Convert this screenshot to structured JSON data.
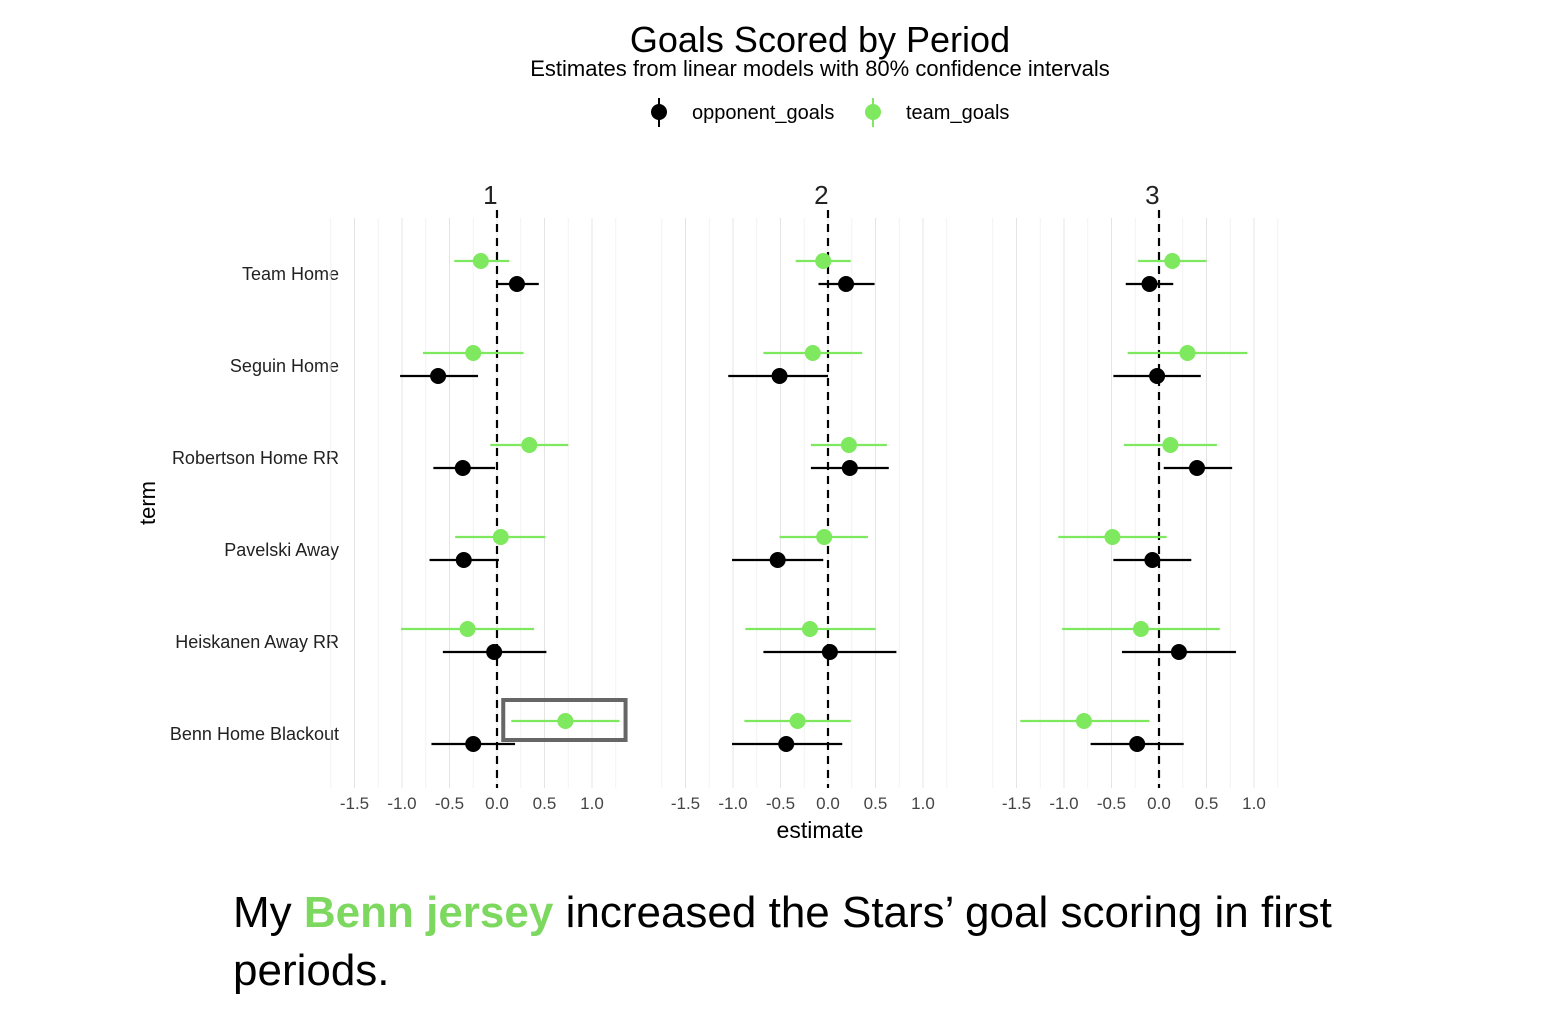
{
  "chart_data": {
    "type": "scatter",
    "subtype": "coefficient dot-and-whisker (faceted)",
    "title": "Goals Scored by Period",
    "subtitle": "Estimates from linear models with 80% confidence intervals",
    "xlabel": "estimate",
    "ylabel": "term",
    "xlim": [
      -1.5,
      1.0
    ],
    "x_ticks": [
      "-1.5",
      "-1.0",
      "-0.5",
      "0.0",
      "0.5",
      "1.0"
    ],
    "reference_line": 0,
    "grid": "vertical",
    "legend": "top-center",
    "terms": [
      "Team Home",
      "Seguin Home",
      "Robertson Home RR",
      "Pavelski Away",
      "Heiskanen Away RR",
      "Benn Home Blackout"
    ],
    "series": [
      {
        "name": "opponent_goals",
        "color": "#000000"
      },
      {
        "name": "team_goals",
        "color": "#7ee85f"
      }
    ],
    "facets": [
      {
        "label": "1",
        "estimates": {
          "opponent_goals": [
            {
              "est": 0.21,
              "low": 0.0,
              "high": 0.44
            },
            {
              "est": -0.62,
              "low": -1.02,
              "high": -0.2
            },
            {
              "est": -0.36,
              "low": -0.67,
              "high": -0.02
            },
            {
              "est": -0.35,
              "low": -0.71,
              "high": 0.02
            },
            {
              "est": -0.03,
              "low": -0.57,
              "high": 0.52
            },
            {
              "est": -0.25,
              "low": -0.69,
              "high": 0.19
            }
          ],
          "team_goals": [
            {
              "est": -0.17,
              "low": -0.45,
              "high": 0.13
            },
            {
              "est": -0.25,
              "low": -0.78,
              "high": 0.28
            },
            {
              "est": 0.34,
              "low": -0.07,
              "high": 0.75
            },
            {
              "est": 0.04,
              "low": -0.44,
              "high": 0.51
            },
            {
              "est": -0.31,
              "low": -1.01,
              "high": 0.39
            },
            {
              "est": 0.72,
              "low": 0.15,
              "high": 1.29
            }
          ]
        }
      },
      {
        "label": "2",
        "estimates": {
          "opponent_goals": [
            {
              "est": 0.19,
              "low": -0.1,
              "high": 0.49
            },
            {
              "est": -0.51,
              "low": -1.05,
              "high": 0.0
            },
            {
              "est": 0.23,
              "low": -0.18,
              "high": 0.64
            },
            {
              "est": -0.53,
              "low": -1.01,
              "high": -0.05
            },
            {
              "est": 0.02,
              "low": -0.68,
              "high": 0.72
            },
            {
              "est": -0.44,
              "low": -1.01,
              "high": 0.15
            }
          ],
          "team_goals": [
            {
              "est": -0.05,
              "low": -0.34,
              "high": 0.24
            },
            {
              "est": -0.16,
              "low": -0.68,
              "high": 0.36
            },
            {
              "est": 0.22,
              "low": -0.18,
              "high": 0.62
            },
            {
              "est": -0.04,
              "low": -0.51,
              "high": 0.42
            },
            {
              "est": -0.19,
              "low": -0.87,
              "high": 0.5
            },
            {
              "est": -0.32,
              "low": -0.88,
              "high": 0.24
            }
          ]
        }
      },
      {
        "label": "3",
        "estimates": {
          "opponent_goals": [
            {
              "est": -0.1,
              "low": -0.35,
              "high": 0.15
            },
            {
              "est": -0.02,
              "low": -0.48,
              "high": 0.44
            },
            {
              "est": 0.4,
              "low": 0.05,
              "high": 0.77
            },
            {
              "est": -0.07,
              "low": -0.48,
              "high": 0.34
            },
            {
              "est": 0.21,
              "low": -0.39,
              "high": 0.81
            },
            {
              "est": -0.23,
              "low": -0.72,
              "high": 0.26
            }
          ],
          "team_goals": [
            {
              "est": 0.14,
              "low": -0.22,
              "high": 0.5
            },
            {
              "est": 0.3,
              "low": -0.33,
              "high": 0.93
            },
            {
              "est": 0.12,
              "low": -0.37,
              "high": 0.61
            },
            {
              "est": -0.49,
              "low": -1.06,
              "high": 0.08
            },
            {
              "est": -0.19,
              "low": -1.02,
              "high": 0.64
            },
            {
              "est": -0.79,
              "low": -1.46,
              "high": -0.1
            }
          ]
        }
      }
    ],
    "highlight": {
      "facet": "1",
      "term": "Benn Home Blackout",
      "series": "team_goals",
      "color": "#666666"
    }
  },
  "caption": {
    "prefix": "My ",
    "highlight": "Benn jersey",
    "suffix": " increased the Stars’ goal scoring in first periods."
  }
}
